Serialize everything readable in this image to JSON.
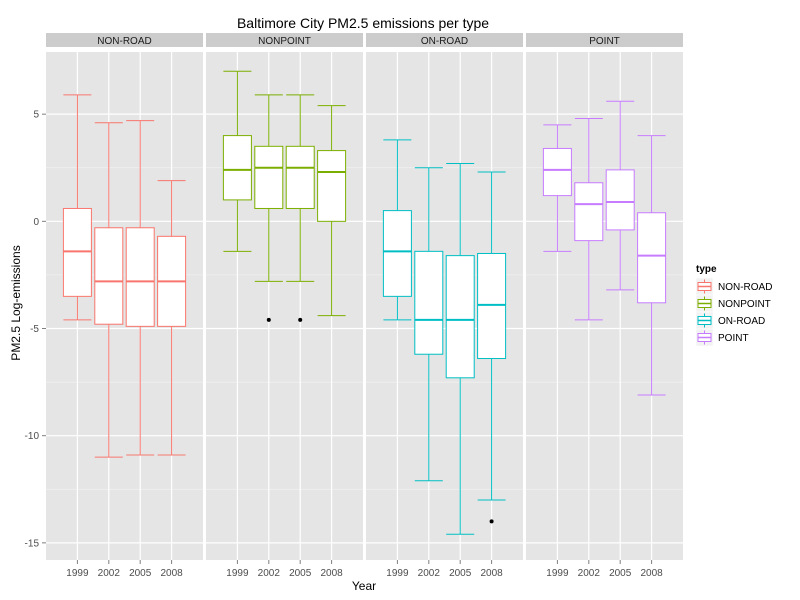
{
  "chart_data": {
    "type": "boxplot",
    "title": "Baltimore City PM2.5 emissions per type",
    "xlabel": "Year",
    "ylabel": "PM2.5 Log-emissions",
    "ylim": [
      -15.8,
      7.9
    ],
    "y_ticks": [
      5,
      0,
      -5,
      -10,
      -15
    ],
    "categories": [
      "1999",
      "2002",
      "2005",
      "2008"
    ],
    "grid": true,
    "legend": {
      "title": "type",
      "position": "right",
      "entries": [
        "NON-ROAD",
        "NONPOINT",
        "ON-ROAD",
        "POINT"
      ]
    },
    "panels": [
      {
        "name": "NON-ROAD",
        "color": "#F8766D",
        "boxes": [
          {
            "year": "1999",
            "min": -4.6,
            "q1": -3.5,
            "median": -1.4,
            "q3": 0.6,
            "max": 5.9,
            "outliers": []
          },
          {
            "year": "2002",
            "min": -11.0,
            "q1": -4.8,
            "median": -2.8,
            "q3": -0.3,
            "max": 4.6,
            "outliers": []
          },
          {
            "year": "2005",
            "min": -10.9,
            "q1": -4.9,
            "median": -2.8,
            "q3": -0.3,
            "max": 4.7,
            "outliers": []
          },
          {
            "year": "2008",
            "min": -10.9,
            "q1": -4.9,
            "median": -2.8,
            "q3": -0.7,
            "max": 1.9,
            "outliers": []
          }
        ]
      },
      {
        "name": "NONPOINT",
        "color": "#7CAE00",
        "boxes": [
          {
            "year": "1999",
            "min": -1.4,
            "q1": 1.0,
            "median": 2.4,
            "q3": 4.0,
            "max": 7.0,
            "outliers": []
          },
          {
            "year": "2002",
            "min": -2.8,
            "q1": 0.6,
            "median": 2.5,
            "q3": 3.5,
            "max": 5.9,
            "outliers": [
              -4.6
            ]
          },
          {
            "year": "2005",
            "min": -2.8,
            "q1": 0.6,
            "median": 2.5,
            "q3": 3.5,
            "max": 5.9,
            "outliers": [
              -4.6
            ]
          },
          {
            "year": "2008",
            "min": -4.4,
            "q1": 0.0,
            "median": 2.3,
            "q3": 3.3,
            "max": 5.4,
            "outliers": []
          }
        ]
      },
      {
        "name": "ON-ROAD",
        "color": "#00BFC4",
        "boxes": [
          {
            "year": "1999",
            "min": -4.6,
            "q1": -3.5,
            "median": -1.4,
            "q3": 0.5,
            "max": 3.8,
            "outliers": []
          },
          {
            "year": "2002",
            "min": -12.1,
            "q1": -6.2,
            "median": -4.6,
            "q3": -1.4,
            "max": 2.5,
            "outliers": []
          },
          {
            "year": "2005",
            "min": -14.6,
            "q1": -7.3,
            "median": -4.6,
            "q3": -1.6,
            "max": 2.7,
            "outliers": []
          },
          {
            "year": "2008",
            "min": -13.0,
            "q1": -6.4,
            "median": -3.9,
            "q3": -1.5,
            "max": 2.3,
            "outliers": [
              -14.0
            ]
          }
        ]
      },
      {
        "name": "POINT",
        "color": "#C77CFF",
        "boxes": [
          {
            "year": "1999",
            "min": -1.4,
            "q1": 1.2,
            "median": 2.4,
            "q3": 3.4,
            "max": 4.5,
            "outliers": []
          },
          {
            "year": "2002",
            "min": -4.6,
            "q1": -0.9,
            "median": 0.8,
            "q3": 1.8,
            "max": 4.8,
            "outliers": []
          },
          {
            "year": "2005",
            "min": -3.2,
            "q1": -0.4,
            "median": 0.9,
            "q3": 2.4,
            "max": 5.6,
            "outliers": []
          },
          {
            "year": "2008",
            "min": -8.1,
            "q1": -3.8,
            "median": -1.6,
            "q3": 0.4,
            "max": 4.0,
            "outliers": []
          }
        ]
      }
    ]
  }
}
